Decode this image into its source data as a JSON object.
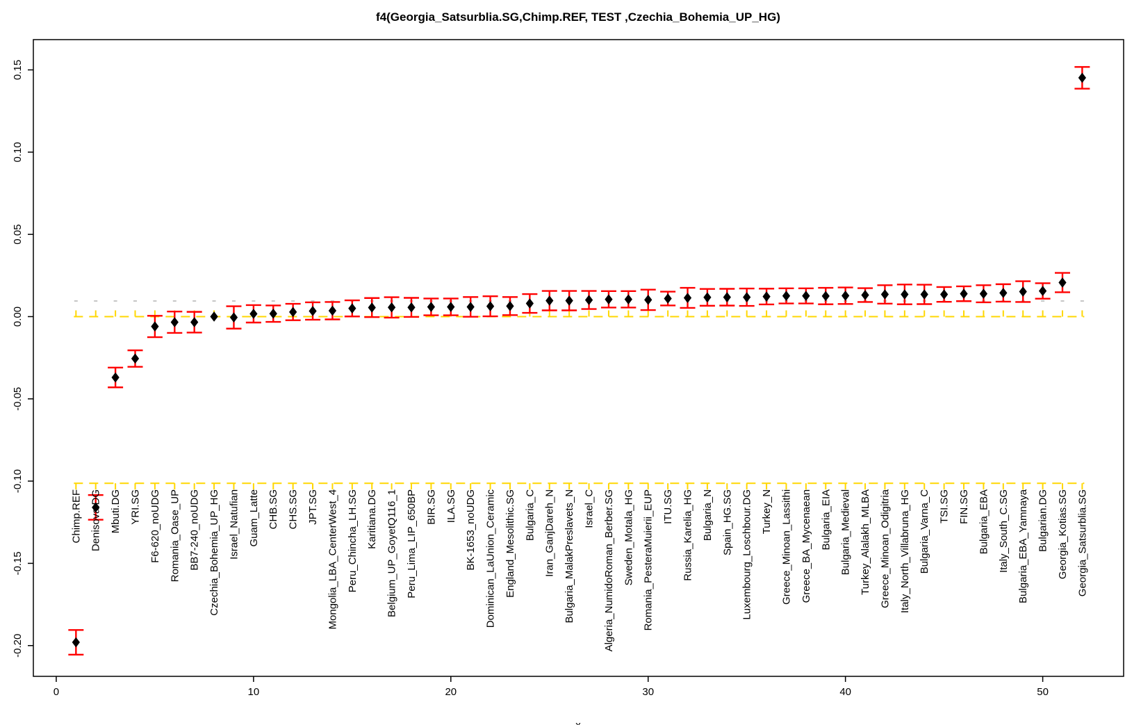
{
  "chart_data": {
    "type": "scatter",
    "title": "f4(Georgia_Satsurblia.SG,Chimp.REF, TEST ,Czechia_Bohemia_UP_HG)",
    "xlabel": "x",
    "ylabel": "",
    "legend": "none",
    "grid": "off",
    "point_marker": "filled-diamond",
    "point_color": "#000000",
    "error_bar_color": "#ff0000",
    "dashed_line_color": "#ffd700",
    "dotted_mark_color": "#c8c8c8",
    "xlim": [
      -1.16,
      54.1
    ],
    "ylim": [
      -0.2187,
      0.1684
    ],
    "x_ticks": [
      {
        "label": "0",
        "v": 0
      },
      {
        "label": "10",
        "v": 10
      },
      {
        "label": "20",
        "v": 20
      },
      {
        "label": "30",
        "v": 30
      },
      {
        "label": "40",
        "v": 40
      },
      {
        "label": "50",
        "v": 50
      }
    ],
    "y_ticks": [
      {
        "label": "0.15",
        "v": 0.15
      },
      {
        "label": "0.10",
        "v": 0.1
      },
      {
        "label": "0.05",
        "v": 0.05
      },
      {
        "label": "0.00",
        "v": 0.0
      },
      {
        "label": "-0.05",
        "v": -0.05
      },
      {
        "label": "-0.10",
        "v": -0.1
      },
      {
        "label": "-0.15",
        "v": -0.15
      },
      {
        "label": "-0.20",
        "v": -0.2
      }
    ],
    "reference_lines": [
      {
        "y": 0.0095,
        "style": "dotted-marks",
        "color": "#c8c8c8",
        "tick_dir": "none"
      },
      {
        "y": 0.0,
        "style": "dashed",
        "color": "#ffd700",
        "tick_dir": "up"
      },
      {
        "y": -0.1013,
        "style": "dashed",
        "color": "#ffd700",
        "tick_dir": "down"
      }
    ],
    "series": [
      {
        "name": "f4_TEST",
        "points": [
          {
            "x": 1,
            "label": "Chimp.REF",
            "y": -0.198,
            "se": 0.0075
          },
          {
            "x": 2,
            "label": "Denisova.DG",
            "y": -0.116,
            "se": 0.0075
          },
          {
            "x": 3,
            "label": "Mbuti.DG",
            "y": -0.037,
            "se": 0.006
          },
          {
            "x": 4,
            "label": "YRI.SG",
            "y": -0.0255,
            "se": 0.005
          },
          {
            "x": 5,
            "label": "F6-620_noUDG",
            "y": -0.006,
            "se": 0.0065
          },
          {
            "x": 6,
            "label": "Romania_Oase_UP",
            "y": -0.0034,
            "se": 0.0065
          },
          {
            "x": 7,
            "label": "BB7-240_noUDG",
            "y": -0.0034,
            "se": 0.0063
          },
          {
            "x": 8,
            "label": "Czechia_Bohemia_UP_HG",
            "y": 0.0,
            "se": 0.0
          },
          {
            "x": 9,
            "label": "Israel_Natufian",
            "y": -0.0005,
            "se": 0.0068
          },
          {
            "x": 10,
            "label": "Guam_Latte",
            "y": 0.0017,
            "se": 0.0053
          },
          {
            "x": 11,
            "label": "CHB.SG",
            "y": 0.0018,
            "se": 0.005
          },
          {
            "x": 12,
            "label": "CHS.SG",
            "y": 0.0028,
            "se": 0.005
          },
          {
            "x": 13,
            "label": "JPT.SG",
            "y": 0.0034,
            "se": 0.0053
          },
          {
            "x": 14,
            "label": "Mongolia_LBA_CenterWest_4",
            "y": 0.0036,
            "se": 0.0053
          },
          {
            "x": 15,
            "label": "Peru_Chincha_LH.SG",
            "y": 0.005,
            "se": 0.0049
          },
          {
            "x": 16,
            "label": "Karitiana.DG",
            "y": 0.0055,
            "se": 0.0058
          },
          {
            "x": 17,
            "label": "Belgium_UP_GoyetQ116_1",
            "y": 0.0056,
            "se": 0.0062
          },
          {
            "x": 18,
            "label": "Peru_Lima_LIP_650BP",
            "y": 0.0056,
            "se": 0.0058
          },
          {
            "x": 19,
            "label": "BIR.SG",
            "y": 0.0059,
            "se": 0.0051
          },
          {
            "x": 20,
            "label": "ILA.SG",
            "y": 0.0059,
            "se": 0.0051
          },
          {
            "x": 21,
            "label": "BK-1653_noUDG",
            "y": 0.0059,
            "se": 0.006
          },
          {
            "x": 22,
            "label": "Dominican_LaUnion_Ceramic",
            "y": 0.0063,
            "se": 0.0061
          },
          {
            "x": 23,
            "label": "England_Mesolithic.SG",
            "y": 0.0064,
            "se": 0.0055
          },
          {
            "x": 24,
            "label": "Bulgaria_C",
            "y": 0.008,
            "se": 0.0057
          },
          {
            "x": 25,
            "label": "Iran_GanjDareh_N",
            "y": 0.0097,
            "se": 0.0059
          },
          {
            "x": 26,
            "label": "Bulgaria_MalakPreslavets_N",
            "y": 0.0097,
            "se": 0.0059
          },
          {
            "x": 27,
            "label": "Israel_C",
            "y": 0.0101,
            "se": 0.0055
          },
          {
            "x": 28,
            "label": "Algeria_NumidoRoman_Berber.SG",
            "y": 0.0105,
            "se": 0.005
          },
          {
            "x": 29,
            "label": "Sweden_Motala_HG",
            "y": 0.0105,
            "se": 0.005
          },
          {
            "x": 30,
            "label": "Romania_PesteraMuierii_EUP",
            "y": 0.0102,
            "se": 0.0062
          },
          {
            "x": 31,
            "label": "ITU.SG",
            "y": 0.011,
            "se": 0.0042
          },
          {
            "x": 32,
            "label": "Russia_Karelia_HG",
            "y": 0.0114,
            "se": 0.0061
          },
          {
            "x": 33,
            "label": "Bulgaria_N",
            "y": 0.0117,
            "se": 0.0051
          },
          {
            "x": 34,
            "label": "Spain_HG.SG",
            "y": 0.0118,
            "se": 0.0051
          },
          {
            "x": 35,
            "label": "Luxembourg_Loschbour.DG",
            "y": 0.0118,
            "se": 0.0053
          },
          {
            "x": 36,
            "label": "Turkey_N",
            "y": 0.0122,
            "se": 0.0048
          },
          {
            "x": 37,
            "label": "Greece_Minoan_Lassithi",
            "y": 0.0126,
            "se": 0.0046
          },
          {
            "x": 38,
            "label": "Greece_BA_Mycenaean",
            "y": 0.0126,
            "se": 0.0046
          },
          {
            "x": 39,
            "label": "Bulgaria_EIA",
            "y": 0.0125,
            "se": 0.005
          },
          {
            "x": 40,
            "label": "Bulgaria_Medieval",
            "y": 0.0127,
            "se": 0.005
          },
          {
            "x": 41,
            "label": "Turkey_Alalakh_MLBA",
            "y": 0.0131,
            "se": 0.0042
          },
          {
            "x": 42,
            "label": "Greece_Minoan_Odigitria",
            "y": 0.0135,
            "se": 0.0056
          },
          {
            "x": 43,
            "label": "Italy_North_Villabruna_HG",
            "y": 0.0135,
            "se": 0.006
          },
          {
            "x": 44,
            "label": "Bulgaria_Varna_C",
            "y": 0.0135,
            "se": 0.0059
          },
          {
            "x": 45,
            "label": "TSI.SG",
            "y": 0.0135,
            "se": 0.0045
          },
          {
            "x": 46,
            "label": "FIN.SG",
            "y": 0.0139,
            "se": 0.0045
          },
          {
            "x": 47,
            "label": "Bulgaria_EBA",
            "y": 0.0139,
            "se": 0.0052
          },
          {
            "x": 48,
            "label": "Italy_South_C.SG",
            "y": 0.0144,
            "se": 0.0053
          },
          {
            "x": 49,
            "label": "Bulgaria_EBA_Yamnaya",
            "y": 0.0152,
            "se": 0.0063
          },
          {
            "x": 50,
            "label": "Bulgarian.DG",
            "y": 0.0156,
            "se": 0.0047
          },
          {
            "x": 51,
            "label": "Georgia_Kotias.SG",
            "y": 0.0207,
            "se": 0.0059
          },
          {
            "x": 52,
            "label": "Georgia_Satsurblia.SG",
            "y": 0.1452,
            "se": 0.0066
          }
        ]
      }
    ]
  }
}
